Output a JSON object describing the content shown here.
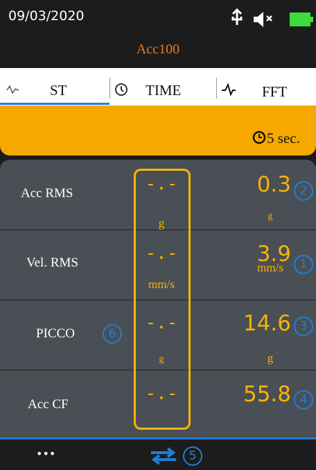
{
  "status_bar": {
    "date": "09/03/2020"
  },
  "header": {
    "title": "Acc100"
  },
  "tabs": [
    "ST",
    "TIME",
    "FFT"
  ],
  "banner": {
    "timer": "5 sec."
  },
  "rows": [
    {
      "label": "Acc RMS",
      "left_value": "-.-",
      "left_unit": "g",
      "right_value": "0.3",
      "right_unit": "g",
      "badge": "2"
    },
    {
      "label": "Vel. RMS",
      "left_value": "-.-",
      "left_unit": "mm/s",
      "right_value": "3.9",
      "right_unit": "mm/s",
      "badge": "1"
    },
    {
      "label": "PICCO",
      "label_badge": "6",
      "left_value": "-.-",
      "left_unit": "g",
      "right_value": "14.6",
      "right_unit": "g",
      "badge": "3"
    },
    {
      "label": "Acc CF",
      "left_value": "-.-",
      "right_value": "55.8",
      "badge": "4"
    }
  ],
  "footer": {
    "menu": "•••",
    "badge": "5"
  }
}
